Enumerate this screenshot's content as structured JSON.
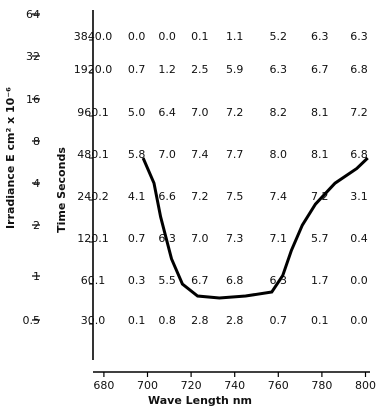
{
  "chart_data": {
    "type": "heatmap",
    "title": "",
    "xlabel": "Wave Length  nm",
    "ylabel_left": "Irradiance  E cm² x 10⁻⁶",
    "ylabel_inner": "Time  Seconds",
    "x_tick_labels": [
      "680",
      "700",
      "720",
      "740",
      "760",
      "780",
      "800"
    ],
    "x_ticks": [
      680,
      700,
      720,
      740,
      760,
      780,
      800
    ],
    "xlim": [
      675,
      800
    ],
    "irradiance_ticks": [
      "64",
      "32",
      "16",
      "8",
      "4",
      "2",
      "1",
      "0.5"
    ],
    "time_ticks": [
      "3840",
      "1920",
      "960",
      "480",
      "240",
      "120",
      "60",
      "30"
    ],
    "row_labels": [
      "3840.0",
      "1920.0",
      "960.1",
      "480.1",
      "240.2",
      "120.1",
      "60.1",
      "30.0"
    ],
    "columns_nm": [
      695,
      709,
      724,
      740,
      760,
      779,
      797
    ],
    "values": [
      [
        "0.0",
        "0.0",
        "0.1",
        "1.1",
        "5.2",
        "6.3",
        "6.3"
      ],
      [
        "0.7",
        "1.2",
        "2.5",
        "5.9",
        "6.3",
        "6.7",
        "6.8"
      ],
      [
        "5.0",
        "6.4",
        "7.0",
        "7.2",
        "8.2",
        "8.1",
        "7.2"
      ],
      [
        "5.8",
        "7.0",
        "7.4",
        "7.7",
        "8.0",
        "8.1",
        "6.8"
      ],
      [
        "4.1",
        "6.6",
        "7.2",
        "7.5",
        "7.4",
        "7.2",
        "3.1"
      ],
      [
        "0.7",
        "6.3",
        "7.0",
        "7.3",
        "7.1",
        "5.7",
        "0.4"
      ],
      [
        "0.3",
        "5.5",
        "6.7",
        "6.8",
        "6.3",
        "1.7",
        "0.0"
      ],
      [
        "0.1",
        "0.8",
        "2.8",
        "2.8",
        "0.7",
        "0.1",
        "0.0"
      ]
    ],
    "curve": {
      "x": [
        698,
        703,
        706,
        711,
        716,
        723,
        733,
        745,
        757,
        762,
        766,
        771,
        777,
        786,
        796,
        801
      ],
      "row_pos": [
        3,
        3.6,
        4.4,
        5.4,
        6.0,
        6.3,
        6.35,
        6.3,
        6.2,
        5.8,
        5.2,
        4.6,
        4.1,
        3.6,
        3.25,
        3.0
      ]
    }
  }
}
